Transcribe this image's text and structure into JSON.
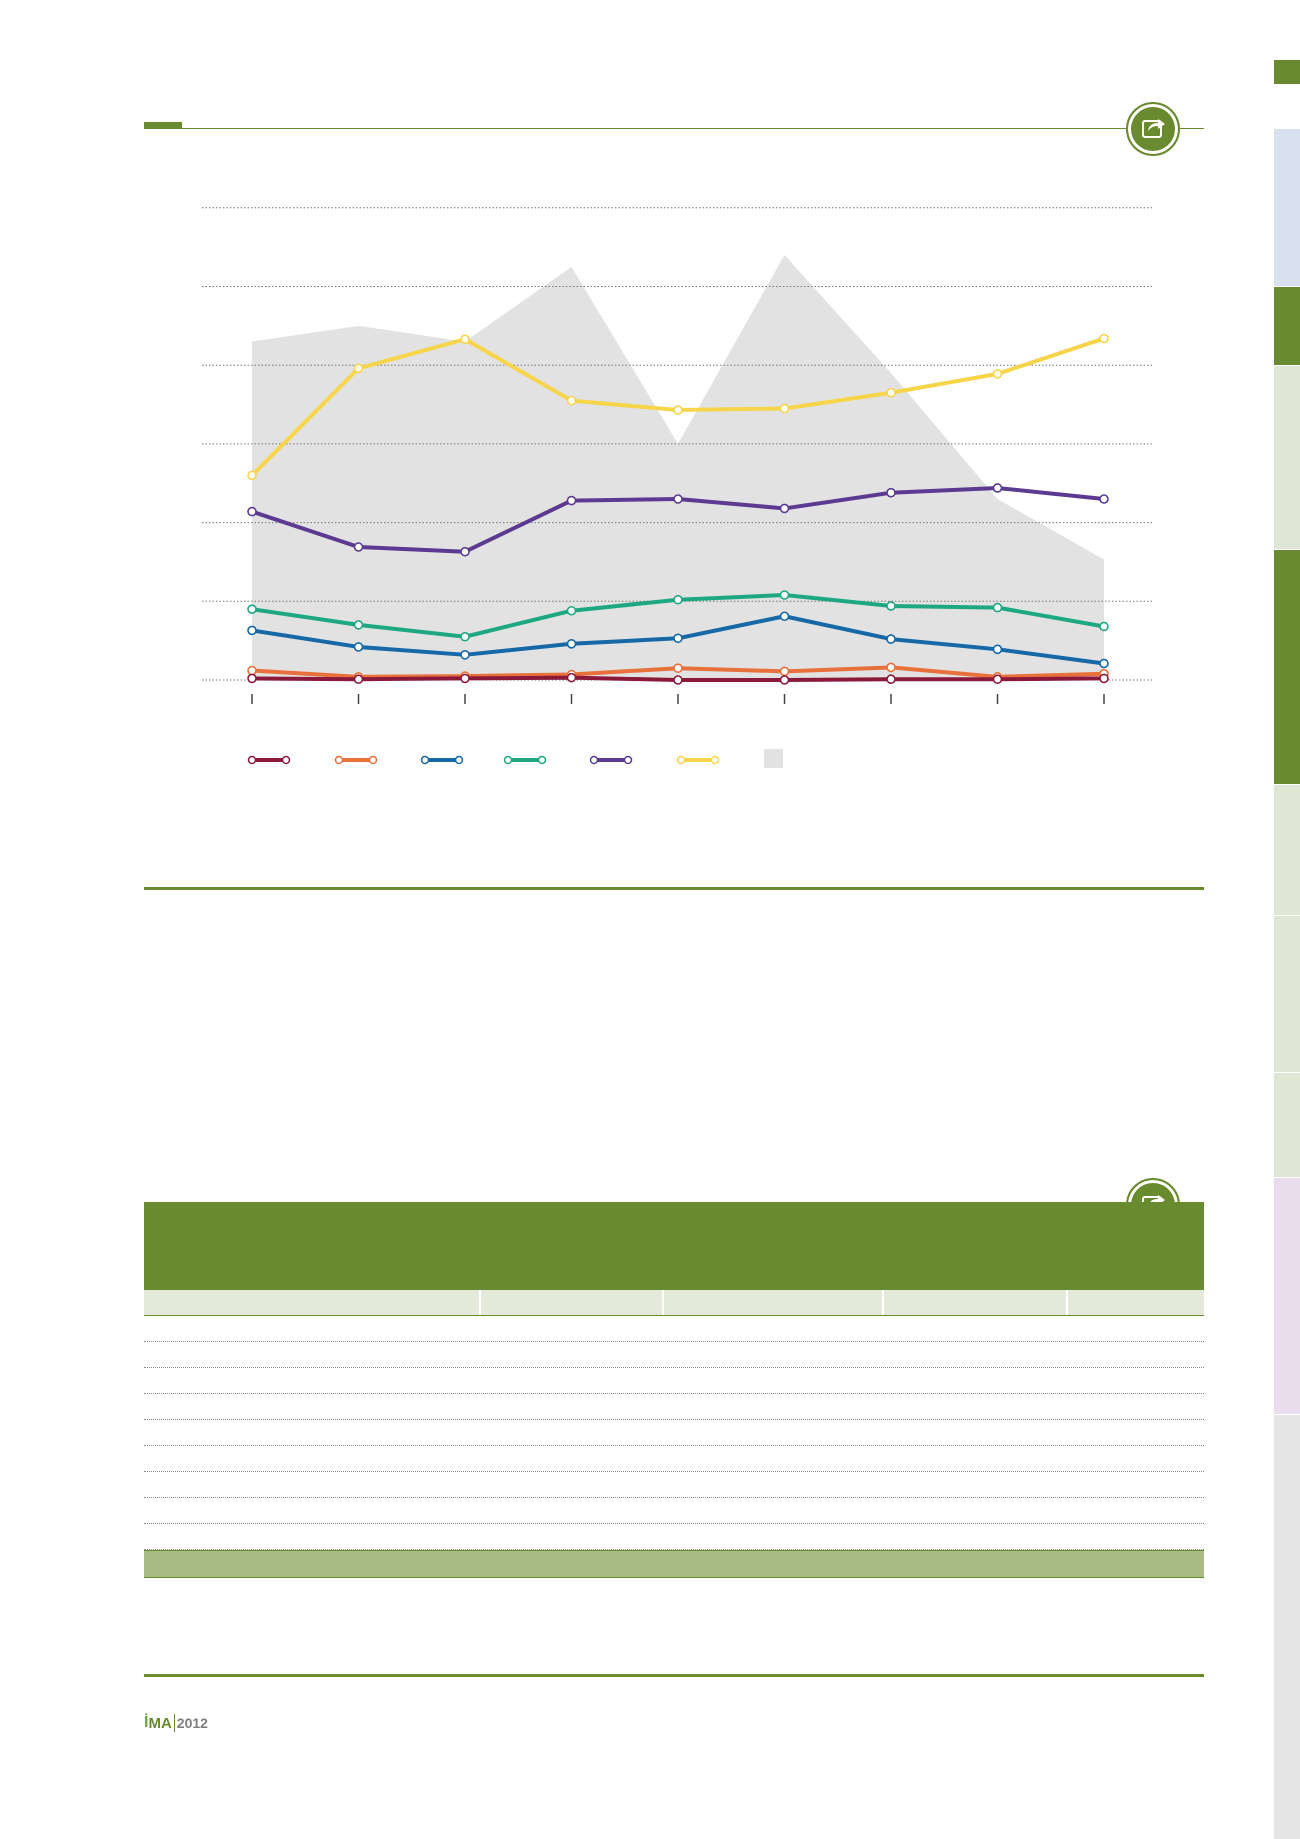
{
  "colors": {
    "accent": "#6a8a2f",
    "series": [
      "#8b1a3a",
      "#e8703a",
      "#1668a6",
      "#1ea882",
      "#5c3a91",
      "#f7d54a"
    ],
    "area": "#e2e2e2"
  },
  "report": {
    "logo_prefix": "İ",
    "logo_main": "MA",
    "year": "2012"
  },
  "chart_data": {
    "type": "line",
    "title": "",
    "categories": [
      "",
      "",
      "",
      "",
      "",
      "",
      "",
      "",
      ""
    ],
    "ylim": [
      0,
      6
    ],
    "grid": true,
    "legend_placement": "bottom",
    "series": [
      {
        "values": [
          0.02,
          0.01,
          0.02,
          0.03,
          0.0,
          0.0,
          0.01,
          0.01,
          0.02
        ]
      },
      {
        "values": [
          0.12,
          0.04,
          0.05,
          0.07,
          0.15,
          0.11,
          0.16,
          0.04,
          0.08
        ]
      },
      {
        "values": [
          0.63,
          0.42,
          0.32,
          0.46,
          0.53,
          0.81,
          0.52,
          0.39,
          0.21
        ]
      },
      {
        "values": [
          0.9,
          0.7,
          0.55,
          0.88,
          1.02,
          1.08,
          0.94,
          0.92,
          0.68
        ]
      },
      {
        "values": [
          2.14,
          1.69,
          1.63,
          2.28,
          2.3,
          2.18,
          2.38,
          2.44,
          2.3
        ]
      },
      {
        "values": [
          2.6,
          3.96,
          4.33,
          3.55,
          3.43,
          3.45,
          3.65,
          3.89,
          4.34
        ]
      }
    ],
    "area": {
      "values": [
        4.3,
        4.5,
        4.3,
        5.25,
        3.0,
        5.4,
        3.9,
        2.3,
        1.53
      ]
    }
  },
  "table": {
    "columns": [
      "",
      "",
      "",
      "",
      ""
    ],
    "rows": 9
  }
}
